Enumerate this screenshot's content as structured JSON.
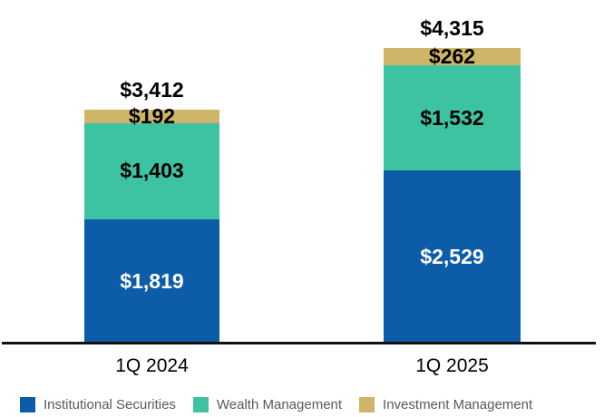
{
  "chart_data": {
    "type": "bar",
    "stacked": true,
    "title": "",
    "xlabel": "",
    "ylabel": "",
    "grid": false,
    "legend_position": "bottom",
    "categories": [
      "1Q 2024",
      "1Q 2025"
    ],
    "series": [
      {
        "name": "Institutional Securities",
        "color": "#0C5CA8",
        "label_color": "#FFFFFF",
        "values": [
          1819,
          2529
        ],
        "labels": [
          "$1,819",
          "$2,529"
        ]
      },
      {
        "name": "Wealth Management",
        "color": "#3DC3A1",
        "label_color": "#000000",
        "values": [
          1403,
          1532
        ],
        "labels": [
          "$1,403",
          "$1,532"
        ]
      },
      {
        "name": "Investment Management",
        "color": "#CFB567",
        "label_color": "#000000",
        "values": [
          192,
          262
        ],
        "labels": [
          "$192",
          "$262"
        ]
      }
    ],
    "totals": [
      3412,
      4315
    ],
    "total_labels": [
      "$3,412",
      "$4,315"
    ]
  },
  "legend": {
    "items": [
      {
        "label": "Institutional Securities"
      },
      {
        "label": "Wealth Management"
      },
      {
        "label": "Investment Management"
      }
    ],
    "text_color": "#595959"
  },
  "axis": {
    "baseline_color": "#111111"
  }
}
